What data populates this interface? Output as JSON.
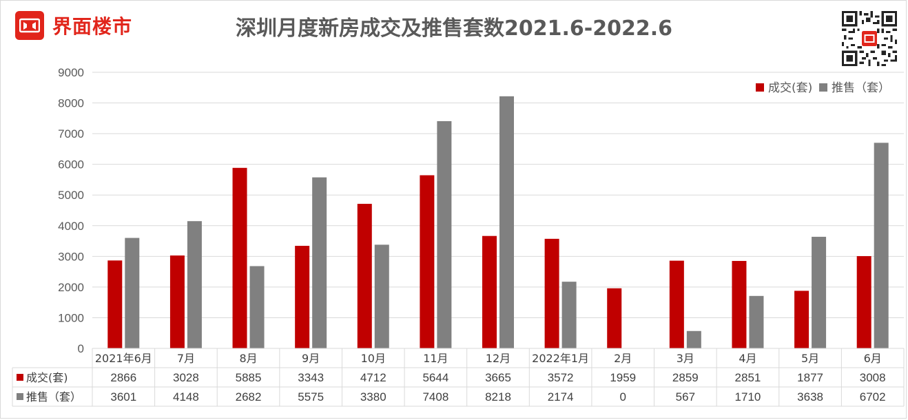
{
  "brand": {
    "name": "界面楼市",
    "color": "#e1251b"
  },
  "chart_data": {
    "type": "bar",
    "title": "深圳月度新房成交及推售套数2021.6-2022.6",
    "categories": [
      "2021年6月",
      "7月",
      "8月",
      "9月",
      "10月",
      "11月",
      "12月",
      "2022年1月",
      "2月",
      "3月",
      "4月",
      "5月",
      "6月"
    ],
    "series": [
      {
        "name": "成交(套)",
        "color": "#c00000",
        "values": [
          2866,
          3028,
          5885,
          3343,
          4712,
          5644,
          3665,
          3572,
          1959,
          2859,
          2851,
          1877,
          3008
        ]
      },
      {
        "name": "推售（套）",
        "color": "#808080",
        "values": [
          3601,
          4148,
          2682,
          5575,
          3380,
          7408,
          8218,
          2174,
          0,
          567,
          1710,
          3638,
          6702
        ]
      }
    ],
    "ylim": [
      0,
      9000
    ],
    "yticks": [
      0,
      1000,
      2000,
      3000,
      4000,
      5000,
      6000,
      7000,
      8000,
      9000
    ],
    "grid": true,
    "legend_position": "top-right",
    "data_table": true,
    "xlabel": "",
    "ylabel": ""
  }
}
